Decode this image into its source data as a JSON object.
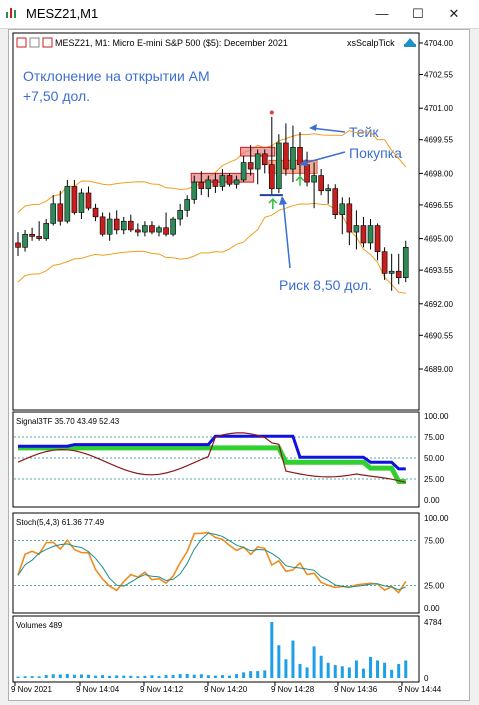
{
  "window": {
    "title": "MESZ21,M1",
    "minimize_label": "—",
    "maximize_label": "☐",
    "close_label": "✕"
  },
  "chart_header": {
    "symbol_info": "MESZ21, M1:  Micro E-mini S&P 500 ($5): December 2021",
    "expert_name": "xsScalpTick"
  },
  "annotations": {
    "deviation_line1": "Отклонение на открытии АМ",
    "deviation_line2": "+7,50 дол.",
    "take_line1": "Тейк",
    "take_line2": "Покупка",
    "risk": "Риск 8,50 дол."
  },
  "colors": {
    "annotation_blue": "#3c6fd1",
    "bull_candle": "#2e8b57",
    "bear_candle": "#c81e1e",
    "band_color": "#f0a020",
    "signal_blue": "#1010e0",
    "signal_green": "#30d030",
    "signal_maroon": "#8b1a1a",
    "stoch_orange": "#f08c1e",
    "stoch_teal": "#1e8c8c",
    "volume_color": "#1ea0e8"
  },
  "price_axis": [
    "4704.00",
    "4702.55",
    "4701.00",
    "4699.55",
    "4698.00",
    "4696.55",
    "4695.00",
    "4693.55",
    "4692.00",
    "4690.55",
    "4689.00"
  ],
  "signal_panel": {
    "label": "Signal3TF 35.70 43.49 52.43",
    "axis": [
      "100.00",
      "75.00",
      "50.00",
      "25.00",
      "0.00"
    ]
  },
  "stoch_panel": {
    "label": "Stoch(5,4,3) 61.36 77.49",
    "axis": [
      "100.00",
      "75.00",
      "25.00",
      "0.00"
    ]
  },
  "volume_panel": {
    "label": "Volumes 489",
    "axis": [
      "4784",
      "0"
    ]
  },
  "time_axis": [
    "9 Nov 2021",
    "9 Nov 14:04",
    "9 Nov 14:12",
    "9 Nov 14:20",
    "9 Nov 14:28",
    "9 Nov 14:36",
    "9 Nov 14:44"
  ],
  "candles": [
    {
      "o": 4694.8,
      "h": 4695.3,
      "l": 4694.2,
      "c": 4694.6
    },
    {
      "o": 4694.6,
      "h": 4695.4,
      "l": 4694.4,
      "c": 4695.2
    },
    {
      "o": 4695.2,
      "h": 4695.5,
      "l": 4694.9,
      "c": 4695.1
    },
    {
      "o": 4695.1,
      "h": 4695.8,
      "l": 4694.9,
      "c": 4695.0
    },
    {
      "o": 4695.0,
      "h": 4695.9,
      "l": 4694.9,
      "c": 4695.7
    },
    {
      "o": 4695.7,
      "h": 4697.0,
      "l": 4695.6,
      "c": 4696.6
    },
    {
      "o": 4696.6,
      "h": 4697.2,
      "l": 4695.6,
      "c": 4695.8
    },
    {
      "o": 4695.8,
      "h": 4697.7,
      "l": 4695.7,
      "c": 4697.4
    },
    {
      "o": 4697.4,
      "h": 4697.7,
      "l": 4696.1,
      "c": 4696.2
    },
    {
      "o": 4696.2,
      "h": 4697.3,
      "l": 4695.9,
      "c": 4697.1
    },
    {
      "o": 4697.1,
      "h": 4697.4,
      "l": 4696.3,
      "c": 4696.4
    },
    {
      "o": 4696.4,
      "h": 4696.6,
      "l": 4695.8,
      "c": 4696.0
    },
    {
      "o": 4696.0,
      "h": 4696.2,
      "l": 4695.1,
      "c": 4695.2
    },
    {
      "o": 4695.2,
      "h": 4696.2,
      "l": 4694.9,
      "c": 4695.9
    },
    {
      "o": 4695.9,
      "h": 4696.3,
      "l": 4695.2,
      "c": 4695.4
    },
    {
      "o": 4695.4,
      "h": 4696.0,
      "l": 4695.2,
      "c": 4695.8
    },
    {
      "o": 4695.8,
      "h": 4696.1,
      "l": 4695.3,
      "c": 4695.4
    },
    {
      "o": 4695.4,
      "h": 4695.7,
      "l": 4695.1,
      "c": 4695.3
    },
    {
      "o": 4695.3,
      "h": 4695.8,
      "l": 4695.1,
      "c": 4695.6
    },
    {
      "o": 4695.6,
      "h": 4695.8,
      "l": 4695.2,
      "c": 4695.3
    },
    {
      "o": 4695.3,
      "h": 4695.6,
      "l": 4695.1,
      "c": 4695.5
    },
    {
      "o": 4695.5,
      "h": 4696.2,
      "l": 4695.1,
      "c": 4695.2
    },
    {
      "o": 4695.2,
      "h": 4696.0,
      "l": 4695.1,
      "c": 4695.9
    },
    {
      "o": 4695.9,
      "h": 4696.6,
      "l": 4695.6,
      "c": 4696.3
    },
    {
      "o": 4696.3,
      "h": 4697.0,
      "l": 4696.0,
      "c": 4696.8
    },
    {
      "o": 4696.8,
      "h": 4697.9,
      "l": 4696.6,
      "c": 4697.6
    },
    {
      "o": 4697.6,
      "h": 4698.1,
      "l": 4697.0,
      "c": 4697.3
    },
    {
      "o": 4697.3,
      "h": 4697.9,
      "l": 4696.9,
      "c": 4697.7
    },
    {
      "o": 4697.7,
      "h": 4698.0,
      "l": 4697.1,
      "c": 4697.4
    },
    {
      "o": 4697.4,
      "h": 4698.2,
      "l": 4697.2,
      "c": 4697.9
    },
    {
      "o": 4697.9,
      "h": 4698.0,
      "l": 4697.4,
      "c": 4697.5
    },
    {
      "o": 4697.5,
      "h": 4697.9,
      "l": 4697.3,
      "c": 4697.7
    },
    {
      "o": 4697.7,
      "h": 4698.8,
      "l": 4697.6,
      "c": 4698.5
    },
    {
      "o": 4698.5,
      "h": 4699.3,
      "l": 4697.9,
      "c": 4698.2
    },
    {
      "o": 4698.2,
      "h": 4699.1,
      "l": 4697.5,
      "c": 4698.9
    },
    {
      "o": 4698.9,
      "h": 4699.1,
      "l": 4698.0,
      "c": 4698.4
    },
    {
      "o": 4698.4,
      "h": 4700.6,
      "l": 4697.0,
      "c": 4697.3
    },
    {
      "o": 4697.3,
      "h": 4699.8,
      "l": 4697.1,
      "c": 4699.4
    },
    {
      "o": 4699.4,
      "h": 4700.3,
      "l": 4697.9,
      "c": 4698.2
    },
    {
      "o": 4698.2,
      "h": 4700.2,
      "l": 4697.6,
      "c": 4699.2
    },
    {
      "o": 4699.2,
      "h": 4699.9,
      "l": 4697.8,
      "c": 4698.4
    },
    {
      "o": 4698.4,
      "h": 4699.0,
      "l": 4697.4,
      "c": 4697.6
    },
    {
      "o": 4697.6,
      "h": 4698.5,
      "l": 4696.4,
      "c": 4697.9
    },
    {
      "o": 4697.9,
      "h": 4698.2,
      "l": 4697.0,
      "c": 4697.2
    },
    {
      "o": 4697.2,
      "h": 4697.5,
      "l": 4696.6,
      "c": 4697.3
    },
    {
      "o": 4697.3,
      "h": 4697.5,
      "l": 4695.9,
      "c": 4696.1
    },
    {
      "o": 4696.1,
      "h": 4696.9,
      "l": 4695.2,
      "c": 4696.6
    },
    {
      "o": 4696.6,
      "h": 4696.9,
      "l": 4694.7,
      "c": 4695.3
    },
    {
      "o": 4695.3,
      "h": 4696.3,
      "l": 4694.5,
      "c": 4695.6
    },
    {
      "o": 4695.6,
      "h": 4696.0,
      "l": 4694.6,
      "c": 4694.8
    },
    {
      "o": 4694.8,
      "h": 4695.9,
      "l": 4694.5,
      "c": 4695.6
    },
    {
      "o": 4695.6,
      "h": 4695.7,
      "l": 4694.0,
      "c": 4694.4
    },
    {
      "o": 4694.4,
      "h": 4694.6,
      "l": 4693.1,
      "c": 4693.4
    },
    {
      "o": 4693.4,
      "h": 4694.3,
      "l": 4692.6,
      "c": 4693.5
    },
    {
      "o": 4693.5,
      "h": 4694.3,
      "l": 4692.9,
      "c": 4693.2
    },
    {
      "o": 4693.2,
      "h": 4694.9,
      "l": 4693.0,
      "c": 4694.6
    }
  ],
  "volumes": [
    120,
    150,
    160,
    140,
    260,
    320,
    300,
    340,
    280,
    300,
    280,
    200,
    250,
    180,
    220,
    200,
    190,
    150,
    180,
    230,
    160,
    250,
    250,
    330,
    350,
    280,
    320,
    240,
    200,
    250,
    200,
    330,
    480,
    590,
    590,
    650,
    4784,
    2800,
    1600,
    3200,
    1200,
    900,
    2700,
    1900,
    1300,
    1100,
    1000,
    900,
    1500,
    800,
    1800,
    1500,
    1300,
    700,
    1200,
    1500
  ]
}
